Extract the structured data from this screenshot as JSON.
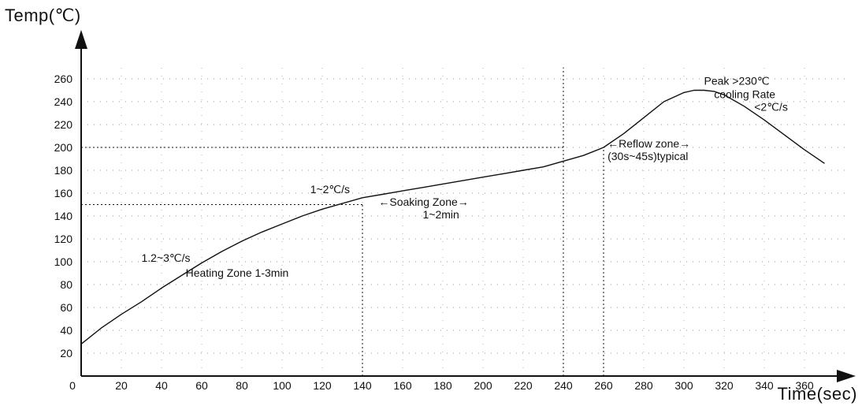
{
  "chart_data": {
    "type": "line",
    "title": "",
    "xlabel": "Time(sec)",
    "ylabel": "Temp(℃)",
    "xlim": [
      0,
      380
    ],
    "ylim": [
      0,
      270
    ],
    "x_ticks": [
      0,
      20,
      40,
      60,
      80,
      100,
      120,
      140,
      160,
      180,
      200,
      220,
      240,
      260,
      280,
      300,
      320,
      340,
      360
    ],
    "y_ticks": [
      20,
      40,
      60,
      80,
      100,
      120,
      140,
      160,
      180,
      200,
      220,
      240,
      260
    ],
    "grid": "dotted",
    "legend": "none",
    "series": [
      {
        "x": [
          0,
          10,
          20,
          30,
          40,
          50,
          60,
          70,
          80,
          90,
          100,
          110,
          120,
          130,
          140,
          150,
          160,
          170,
          180,
          190,
          200,
          210,
          220,
          230,
          240,
          250,
          260,
          270,
          280,
          290,
          300,
          305,
          310,
          315,
          320,
          330,
          340,
          350,
          360,
          370
        ],
        "values": [
          28,
          42,
          54,
          65,
          77,
          88,
          99,
          109,
          118,
          126,
          133,
          140,
          146,
          151,
          156,
          159,
          162,
          165,
          168,
          171,
          174,
          177,
          180,
          183,
          188,
          193,
          200,
          212,
          226,
          240,
          248,
          250,
          250,
          249,
          246,
          236,
          224,
          211,
          198,
          186
        ]
      }
    ],
    "reference_lines": [
      {
        "axis": "y",
        "value": 200,
        "x_to": 240
      },
      {
        "axis": "y",
        "value": 150,
        "x_to": 140
      },
      {
        "axis": "x",
        "value": 140,
        "y_to": 150
      },
      {
        "axis": "x",
        "value": 240,
        "y_to": 270
      },
      {
        "axis": "x",
        "value": 260,
        "y_to": 200
      }
    ],
    "annotations": [
      {
        "text": "1.2~3℃/s",
        "x": 30,
        "y": 100
      },
      {
        "text": "Heating Zone 1-3min",
        "x": 52,
        "y": 87
      },
      {
        "text": "1~2℃/s",
        "x": 114,
        "y": 160
      },
      {
        "text": "←Soaking Zone→",
        "x": 148,
        "y": 149
      },
      {
        "text": "1~2min",
        "x": 170,
        "y": 138
      },
      {
        "text": "←Reflow zone→",
        "x": 262,
        "y": 200
      },
      {
        "text": "(30s~45s)typical",
        "x": 262,
        "y": 189
      },
      {
        "text": "Peak >230℃",
        "x": 310,
        "y": 255
      },
      {
        "text": "cooling Rate",
        "x": 315,
        "y": 243
      },
      {
        "text": "<2℃/s",
        "x": 335,
        "y": 232
      }
    ]
  }
}
